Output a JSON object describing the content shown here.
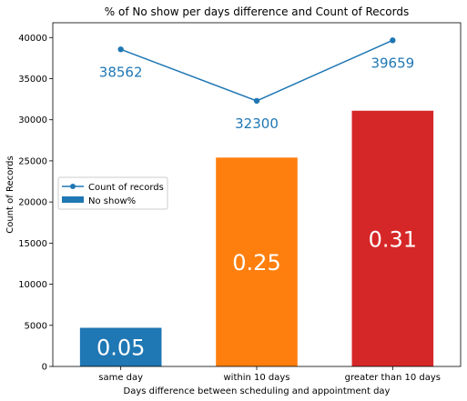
{
  "chart_data": {
    "type": "bar",
    "title": "% of No show per days difference and Count of Records",
    "xlabel": "Days difference between scheduling and appointment day",
    "ylabel": "Count of Records",
    "categories": [
      "same day",
      "within 10 days",
      "greater than 10 days"
    ],
    "ylim": [
      0,
      41800
    ],
    "yticks": [
      0,
      5000,
      10000,
      15000,
      20000,
      25000,
      30000,
      35000,
      40000
    ],
    "series": [
      {
        "name": "No show%",
        "type": "bar",
        "values": [
          4700,
          25400,
          31100
        ],
        "labels": [
          "0.05",
          "0.25",
          "0.31"
        ],
        "colors": [
          "#1f77b4",
          "#ff7f0e",
          "#d62728"
        ],
        "label_color": "#ffffff"
      },
      {
        "name": "Count of records",
        "type": "line",
        "values": [
          38562,
          32300,
          39659
        ],
        "labels": [
          "38562",
          "32300",
          "39659"
        ],
        "color": "#1f77b4",
        "label_color": "#1f77b4"
      }
    ],
    "legend": "center-left",
    "grid": false
  }
}
